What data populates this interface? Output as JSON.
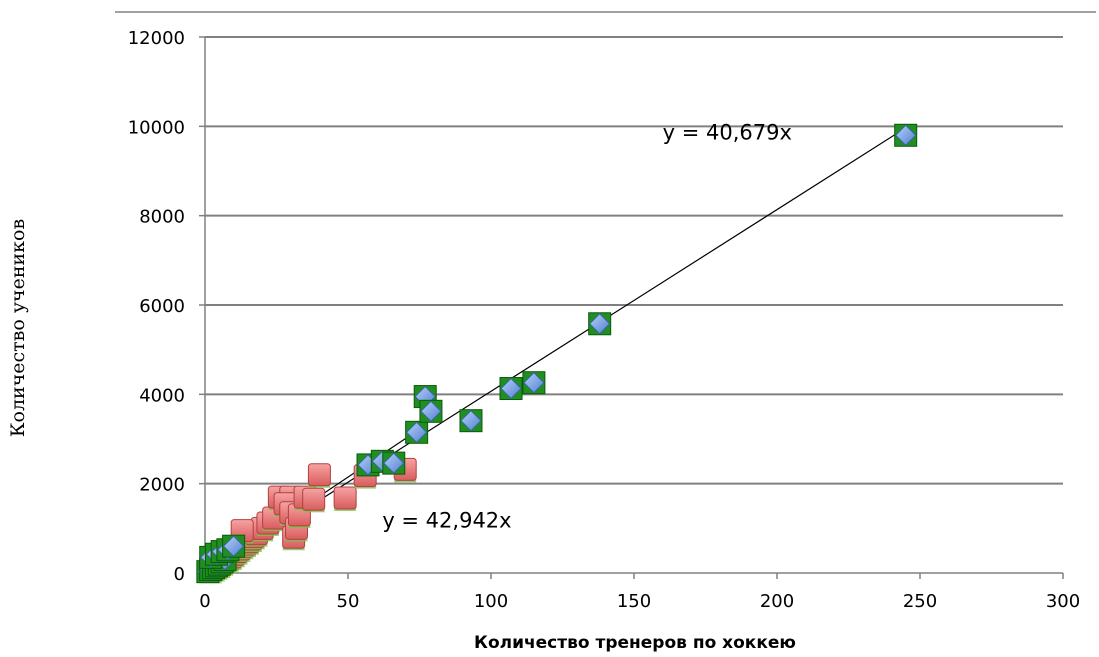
{
  "chart_data": {
    "type": "scatter",
    "title": "",
    "xlabel": "Количество тренеров по хоккею",
    "ylabel": "Количество учеников",
    "xlim": [
      0,
      300
    ],
    "ylim": [
      0,
      12000
    ],
    "x_ticks": [
      "0",
      "50",
      "100",
      "150",
      "200",
      "250",
      "300"
    ],
    "y_ticks": [
      "0",
      "2000",
      "4000",
      "6000",
      "8000",
      "10000",
      "12000"
    ],
    "grid": "horizontal",
    "legend": "none",
    "series": [
      {
        "marker": "diamond",
        "color": "#6f9fe0",
        "points": [
          [
            1,
            30
          ],
          [
            2,
            80
          ],
          [
            3,
            120
          ],
          [
            4,
            160
          ],
          [
            5,
            200
          ],
          [
            6,
            250
          ],
          [
            7,
            300
          ],
          [
            2,
            350
          ],
          [
            4,
            420
          ],
          [
            6,
            480
          ],
          [
            8,
            520
          ],
          [
            10,
            600
          ],
          [
            57,
            2420
          ],
          [
            62,
            2500
          ],
          [
            66,
            2460
          ],
          [
            74,
            3150
          ],
          [
            77,
            3950
          ],
          [
            79,
            3620
          ],
          [
            93,
            3410
          ],
          [
            107,
            4130
          ],
          [
            115,
            4260
          ],
          [
            138,
            5580
          ],
          [
            245,
            9800
          ]
        ]
      },
      {
        "marker": "square",
        "color": "#e8787a",
        "points": [
          [
            2,
            60
          ],
          [
            3,
            100
          ],
          [
            4,
            140
          ],
          [
            5,
            180
          ],
          [
            6,
            230
          ],
          [
            7,
            280
          ],
          [
            8,
            320
          ],
          [
            9,
            360
          ],
          [
            10,
            420
          ],
          [
            11,
            480
          ],
          [
            12,
            540
          ],
          [
            13,
            600
          ],
          [
            14,
            650
          ],
          [
            15,
            700
          ],
          [
            16,
            760
          ],
          [
            17,
            820
          ],
          [
            18,
            880
          ],
          [
            20,
            1000
          ],
          [
            22,
            1120
          ],
          [
            13,
            950
          ],
          [
            24,
            1230
          ],
          [
            26,
            1700
          ],
          [
            30,
            1700
          ],
          [
            28,
            1550
          ],
          [
            30,
            1350
          ],
          [
            31,
            800
          ],
          [
            32,
            1000
          ],
          [
            33,
            1300
          ],
          [
            35,
            1700
          ],
          [
            38,
            1650
          ],
          [
            40,
            2200
          ],
          [
            49,
            1680
          ],
          [
            56,
            2180
          ],
          [
            70,
            2320
          ]
        ]
      }
    ],
    "trendlines": [
      {
        "equation": "y = 40,679x",
        "slope": 40.679,
        "x_range": [
          0,
          245
        ],
        "label_at": [
          160,
          9700
        ]
      },
      {
        "equation": "y = 42,942x",
        "slope": 42.942,
        "x_range": [
          0,
          70
        ],
        "label_at": [
          62,
          1020
        ]
      }
    ]
  }
}
